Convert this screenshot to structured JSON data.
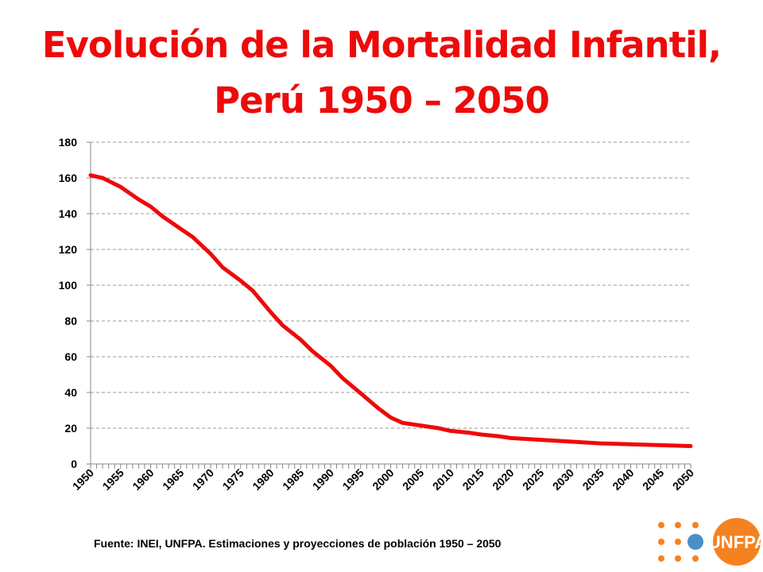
{
  "slide": {
    "title_line1": "Evolución de la Mortalidad Infantil,",
    "title_line2": "Perú 1950 – 2050",
    "source": "Fuente: INEI, UNFPA. Estimaciones y proyecciones de población 1950 – 2050",
    "logo_text": "UNFPA",
    "colors": {
      "title": "#ee0a0a",
      "series": "#ee0a0a",
      "logo_orange": "#f58220",
      "logo_blue": "#4a90c8"
    }
  },
  "chart_data": {
    "type": "line",
    "title": "",
    "xlabel": "",
    "ylabel": "",
    "ylim": [
      0,
      180
    ],
    "yticks": [
      0,
      20,
      40,
      60,
      80,
      100,
      120,
      140,
      160,
      180
    ],
    "xticks": [
      "1950",
      "1955",
      "1960",
      "1965",
      "1970",
      "1975",
      "1980",
      "1985",
      "1990",
      "1995",
      "2000",
      "2005",
      "2010",
      "2015",
      "2020",
      "2025",
      "2030",
      "2035",
      "2040",
      "2045",
      "2050"
    ],
    "grid": true,
    "legend": "none",
    "series": [
      {
        "x": [
          1950,
          1952,
          1955,
          1958,
          1960,
          1962,
          1965,
          1967,
          1970,
          1972,
          1975,
          1977,
          1980,
          1982,
          1985,
          1987,
          1990,
          1992,
          1995,
          1998,
          2000,
          2002,
          2005,
          2008,
          2010,
          2013,
          2015,
          2018,
          2020,
          2025,
          2030,
          2035,
          2040,
          2045,
          2050
        ],
        "values": [
          161.5,
          160,
          155,
          148,
          144,
          138.5,
          131.5,
          127,
          117.5,
          110,
          102.5,
          97,
          85,
          77.5,
          69.5,
          63,
          55,
          48,
          39.5,
          31,
          26,
          23,
          21.5,
          20,
          18.5,
          17.5,
          16.5,
          15.5,
          14.5,
          13.5,
          12.5,
          11.5,
          11,
          10.5,
          10
        ]
      }
    ]
  }
}
